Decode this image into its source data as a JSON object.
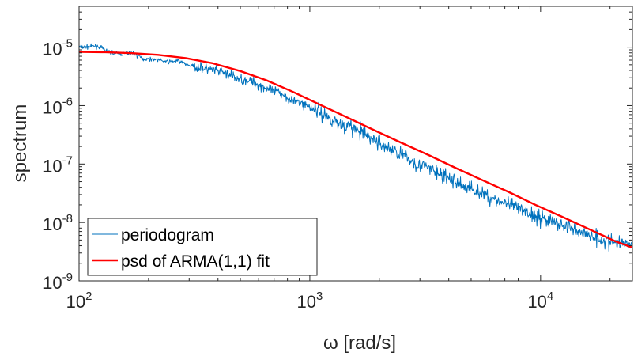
{
  "chart_data": {
    "type": "line",
    "xscale": "log",
    "yscale": "log",
    "xlim": [
      100,
      25000
    ],
    "ylim": [
      1e-09,
      5e-05
    ],
    "xlabel": "ω [rad/s]",
    "ylabel": "spectrum",
    "xticks": [
      {
        "value": 100,
        "base": "10",
        "exp": "2"
      },
      {
        "value": 1000,
        "base": "10",
        "exp": "3"
      },
      {
        "value": 10000,
        "base": "10",
        "exp": "4"
      }
    ],
    "yticks": [
      {
        "value": 1e-09,
        "base": "10",
        "exp": "-9"
      },
      {
        "value": 1e-08,
        "base": "10",
        "exp": "-8"
      },
      {
        "value": 1e-07,
        "base": "10",
        "exp": "-7"
      },
      {
        "value": 1e-06,
        "base": "10",
        "exp": "-6"
      },
      {
        "value": 1e-05,
        "base": "10",
        "exp": "-5"
      }
    ],
    "grid": false,
    "box": true,
    "legend_position": "bottom-left",
    "series": [
      {
        "name": "periodogram",
        "color": "#0072BD",
        "style": "noisy",
        "x": [
          100,
          110,
          120,
          135,
          150,
          170,
          190,
          215,
          240,
          270,
          300,
          340,
          380,
          430,
          480,
          540,
          600,
          680,
          760,
          850,
          950,
          1070,
          1200,
          1350,
          1500,
          1700,
          1900,
          2150,
          2400,
          2700,
          3000,
          3400,
          3800,
          4300,
          4800,
          5400,
          6000,
          6800,
          7600,
          8500,
          9500,
          10700,
          12000,
          13500,
          15000,
          17000,
          19000,
          21500,
          24000,
          25000
        ],
        "y": [
          1e-05,
          1.02e-05,
          1.05e-05,
          8.2e-06,
          7.6e-06,
          8e-06,
          6.3e-06,
          6.2e-06,
          5.6e-06,
          5.8e-06,
          4.9e-06,
          4.4e-06,
          4e-06,
          3.6e-06,
          2.9e-06,
          2.7e-06,
          2.3e-06,
          1.8e-06,
          1.6e-06,
          1.2e-06,
          1.05e-06,
          8.4e-07,
          6.2e-07,
          4.9e-07,
          4.3e-07,
          3.3e-07,
          2.6e-07,
          1.9e-07,
          1.6e-07,
          1.2e-07,
          9.6e-08,
          7.9e-08,
          6.1e-08,
          4.9e-08,
          4e-08,
          3.3e-08,
          2.7e-08,
          2.2e-08,
          1.9e-08,
          1.55e-08,
          1.3e-08,
          1.1e-08,
          9.4e-09,
          8e-09,
          6.8e-09,
          5.8e-09,
          4.9e-09,
          4.3e-09,
          4.6e-09,
          4.2e-09
        ]
      },
      {
        "name": "psd of ARMA(1,1) fit",
        "color": "#FF0000",
        "style": "smooth",
        "x": [
          100,
          130,
          170,
          220,
          290,
          380,
          500,
          650,
          850,
          1100,
          1450,
          1900,
          2500,
          3300,
          4300,
          5600,
          7300,
          9500,
          12400,
          16200,
          21000,
          25000
        ],
        "y": [
          8.3e-06,
          8.2e-06,
          7.9e-06,
          7.4e-06,
          6.5e-06,
          5.3e-06,
          3.9e-06,
          2.7e-06,
          1.7e-06,
          1.05e-06,
          6.3e-07,
          3.8e-07,
          2.3e-07,
          1.4e-07,
          8.5e-08,
          5.3e-08,
          3.3e-08,
          2e-08,
          1.25e-08,
          7.7e-09,
          4.8e-09,
          3.7e-09
        ]
      }
    ]
  }
}
